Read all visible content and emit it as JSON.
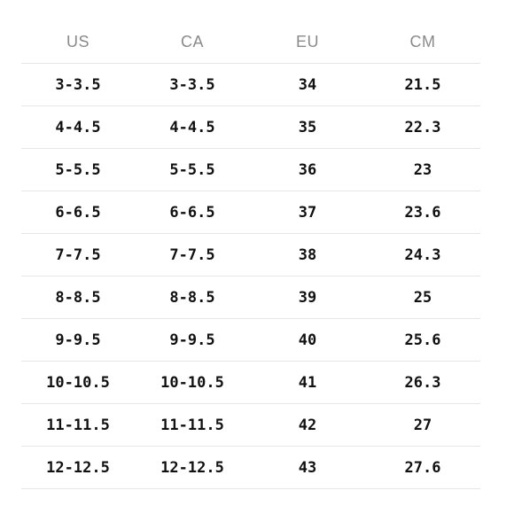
{
  "size_chart": {
    "headers": [
      "US",
      "CA",
      "EU",
      "CM"
    ],
    "rows": [
      [
        "3-3.5",
        "3-3.5",
        "34",
        "21.5"
      ],
      [
        "4-4.5",
        "4-4.5",
        "35",
        "22.3"
      ],
      [
        "5-5.5",
        "5-5.5",
        "36",
        "23"
      ],
      [
        "6-6.5",
        "6-6.5",
        "37",
        "23.6"
      ],
      [
        "7-7.5",
        "7-7.5",
        "38",
        "24.3"
      ],
      [
        "8-8.5",
        "8-8.5",
        "39",
        "25"
      ],
      [
        "9-9.5",
        "9-9.5",
        "40",
        "25.6"
      ],
      [
        "10-10.5",
        "10-10.5",
        "41",
        "26.3"
      ],
      [
        "11-11.5",
        "11-11.5",
        "42",
        "27"
      ],
      [
        "12-12.5",
        "12-12.5",
        "43",
        "27.6"
      ]
    ]
  },
  "colors": {
    "header_text": "#8a8a8a",
    "cell_text": "#111111",
    "divider": "#e6e6e6",
    "background": "#ffffff"
  }
}
